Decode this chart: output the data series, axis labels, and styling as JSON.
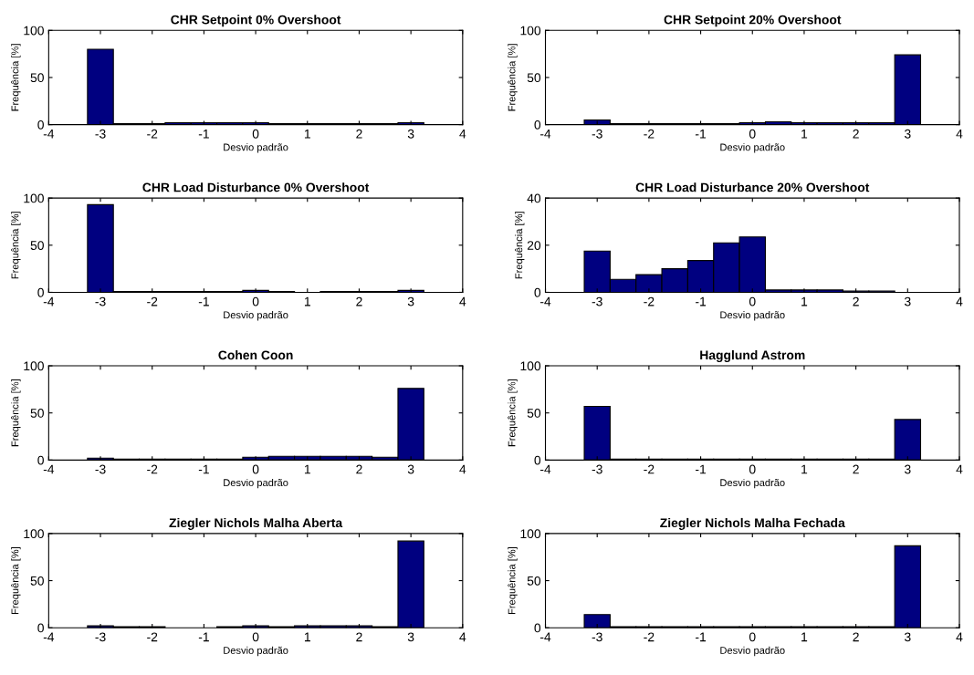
{
  "chart_data": [
    {
      "type": "histogram",
      "title": "CHR Setpoint 0% Overshoot",
      "xlabel": "Desvio padrão",
      "ylabel": "Frequência [%]",
      "bins": [
        -3.25,
        -2.75,
        -2.25,
        -1.75,
        -1.25,
        -0.75,
        -0.25,
        0.25,
        0.75,
        1.25,
        1.75,
        2.25,
        2.75,
        3.25
      ],
      "values": [
        80,
        1,
        1,
        2,
        2,
        2,
        2,
        1,
        1,
        1,
        1,
        1,
        2
      ],
      "color": "#000080",
      "xlim": [
        -4,
        4
      ],
      "xticks": [
        -4,
        -3,
        -2,
        -1,
        0,
        1,
        2,
        3,
        4
      ],
      "ylim": [
        0,
        100
      ],
      "yticks": [
        0,
        50,
        100
      ],
      "grid": false
    },
    {
      "type": "histogram",
      "title": "CHR Setpoint 20% Overshoot",
      "xlabel": "Desvio padrão",
      "ylabel": "Frequência [%]",
      "bins": [
        -3.25,
        -2.75,
        -2.25,
        -1.75,
        -1.25,
        -0.75,
        -0.25,
        0.25,
        0.75,
        1.25,
        1.75,
        2.25,
        2.75,
        3.25
      ],
      "values": [
        5,
        1,
        1,
        1,
        1,
        1,
        2,
        3,
        2,
        2,
        2,
        2,
        74
      ],
      "color": "#000080",
      "xlim": [
        -4,
        4
      ],
      "xticks": [
        -4,
        -3,
        -2,
        -1,
        0,
        1,
        2,
        3,
        4
      ],
      "ylim": [
        0,
        100
      ],
      "yticks": [
        0,
        50,
        100
      ],
      "grid": false
    },
    {
      "type": "histogram",
      "title": "CHR Load Disturbance 0% Overshoot",
      "xlabel": "Desvio padrão",
      "ylabel": "Frequência [%]",
      "bins": [
        -3.25,
        -2.75,
        -2.25,
        -1.75,
        -1.25,
        -0.75,
        -0.25,
        0.25,
        0.75,
        1.25,
        1.75,
        2.25,
        2.75,
        3.25
      ],
      "values": [
        93,
        1,
        1,
        1,
        1,
        1,
        2,
        1,
        0,
        1,
        1,
        1,
        2
      ],
      "color": "#000080",
      "xlim": [
        -4,
        4
      ],
      "xticks": [
        -4,
        -3,
        -2,
        -1,
        0,
        1,
        2,
        3,
        4
      ],
      "ylim": [
        0,
        100
      ],
      "yticks": [
        0,
        50,
        100
      ],
      "grid": false
    },
    {
      "type": "histogram",
      "title": "CHR Load Disturbance 20% Overshoot",
      "xlabel": "Desvio padrão",
      "ylabel": "Frequência [%]",
      "bins": [
        -3.25,
        -2.75,
        -2.25,
        -1.75,
        -1.25,
        -0.75,
        -0.25,
        0.25,
        0.75,
        1.25,
        1.75,
        2.25,
        2.75,
        3.25
      ],
      "values": [
        17.5,
        5.5,
        7.5,
        10,
        13.5,
        21,
        23.5,
        1,
        1,
        1,
        0.5,
        0.5,
        null
      ],
      "color": "#000080",
      "xlim": [
        -4,
        4
      ],
      "xticks": [
        -4,
        -3,
        -2,
        -1,
        0,
        1,
        2,
        3,
        4
      ],
      "ylim": [
        0,
        40
      ],
      "yticks": [
        0,
        20,
        40
      ],
      "grid": false
    },
    {
      "type": "histogram",
      "title": "Cohen Coon",
      "xlabel": "Desvio padrão",
      "ylabel": "Frequência [%]",
      "bins": [
        -3.25,
        -2.75,
        -2.25,
        -1.75,
        -1.25,
        -0.75,
        -0.25,
        0.25,
        0.75,
        1.25,
        1.75,
        2.25,
        2.75,
        3.25
      ],
      "values": [
        2,
        1,
        1,
        1,
        1,
        1,
        3,
        4,
        4,
        4,
        4,
        3,
        76
      ],
      "color": "#000080",
      "xlim": [
        -4,
        4
      ],
      "xticks": [
        -4,
        -3,
        -2,
        -1,
        0,
        1,
        2,
        3,
        4
      ],
      "ylim": [
        0,
        100
      ],
      "yticks": [
        0,
        50,
        100
      ],
      "grid": false
    },
    {
      "type": "histogram",
      "title": "Hagglund Astrom",
      "xlabel": "Desvio padrão",
      "ylabel": "Frequência [%]",
      "bins": [
        -3.25,
        -2.75,
        -2.25,
        -1.75,
        -1.25,
        -0.75,
        -0.25,
        0.25,
        0.75,
        1.25,
        1.75,
        2.25,
        2.75,
        3.25
      ],
      "values": [
        57,
        1,
        1,
        1,
        1,
        1,
        1,
        1,
        1,
        1,
        1,
        1,
        43
      ],
      "color": "#000080",
      "xlim": [
        -4,
        4
      ],
      "xticks": [
        -4,
        -3,
        -2,
        -1,
        0,
        1,
        2,
        3,
        4
      ],
      "ylim": [
        0,
        100
      ],
      "yticks": [
        0,
        50,
        100
      ],
      "grid": false
    },
    {
      "type": "histogram",
      "title": "Ziegler Nichols Malha Aberta",
      "xlabel": "Desvio padrão",
      "ylabel": "Frequência [%]",
      "bins": [
        -3.25,
        -2.75,
        -2.25,
        -1.75,
        -1.25,
        -0.75,
        -0.25,
        0.25,
        0.75,
        1.25,
        1.75,
        2.25,
        2.75,
        3.25
      ],
      "values": [
        2,
        1,
        1,
        0,
        0,
        1,
        2,
        1,
        2,
        2,
        2,
        1,
        92
      ],
      "color": "#000080",
      "xlim": [
        -4,
        4
      ],
      "xticks": [
        -4,
        -3,
        -2,
        -1,
        0,
        1,
        2,
        3,
        4
      ],
      "ylim": [
        0,
        100
      ],
      "yticks": [
        0,
        50,
        100
      ],
      "grid": false
    },
    {
      "type": "histogram",
      "title": "Ziegler Nichols Malha Fechada",
      "xlabel": "Desvio padrão",
      "ylabel": "Frequência [%]",
      "bins": [
        -3.25,
        -2.75,
        -2.25,
        -1.75,
        -1.25,
        -0.75,
        -0.25,
        0.25,
        0.75,
        1.25,
        1.75,
        2.25,
        2.75,
        3.25
      ],
      "values": [
        14,
        1,
        1,
        1,
        1,
        1,
        1,
        1,
        1,
        1,
        1,
        1,
        87
      ],
      "color": "#000080",
      "xlim": [
        -4,
        4
      ],
      "xticks": [
        -4,
        -3,
        -2,
        -1,
        0,
        1,
        2,
        3,
        4
      ],
      "ylim": [
        0,
        100
      ],
      "yticks": [
        0,
        50,
        100
      ],
      "grid": false
    }
  ]
}
